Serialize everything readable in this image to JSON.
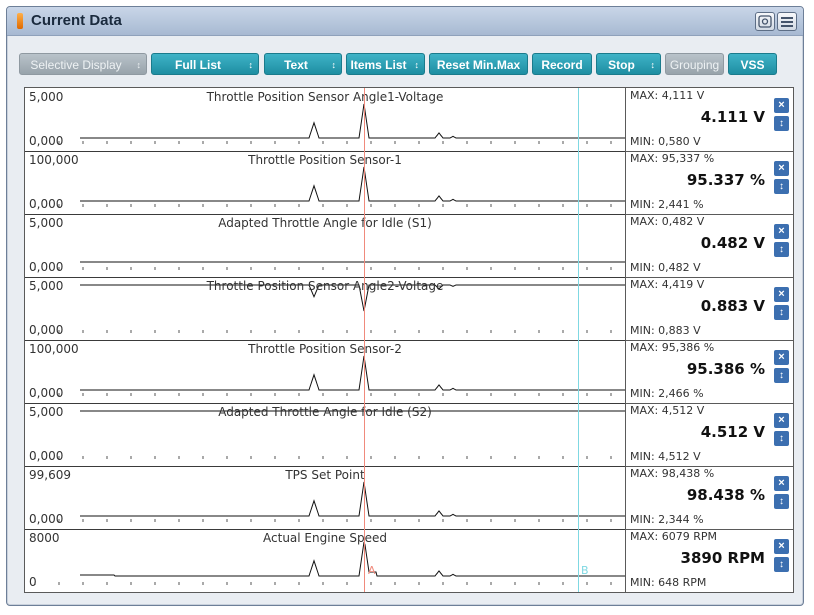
{
  "window": {
    "title": "Current Data"
  },
  "toolbar": {
    "buttons": [
      {
        "label": "Selective Display",
        "spin": "↕",
        "disabled": true
      },
      {
        "label": "Full List",
        "spin": "↕",
        "disabled": false
      },
      {
        "label": "Text",
        "spin": "↕",
        "disabled": false
      },
      {
        "label": "Items List",
        "spin": "↕",
        "disabled": false
      },
      {
        "label": "Reset Min.Max",
        "spin": "",
        "disabled": false
      },
      {
        "label": "Record",
        "spin": "",
        "disabled": false
      },
      {
        "label": "Stop",
        "spin": "↕",
        "disabled": false
      },
      {
        "label": "Grouping",
        "spin": "",
        "disabled": true
      },
      {
        "label": "VSS",
        "spin": "",
        "disabled": false
      }
    ]
  },
  "cursors": {
    "a": "A",
    "b": "B"
  },
  "icons": {
    "close": "×",
    "updown": "↕"
  },
  "rows": [
    {
      "name": "Throttle Position Sensor Angle1-Voltage",
      "ymax": "5,000",
      "ymin": "0,000",
      "max": "MAX: 4,111 V",
      "value": "4.111 V",
      "min": "MIN: 0,580 V",
      "shape": "spikes-low"
    },
    {
      "name": "Throttle Position Sensor-1",
      "ymax": "100,000",
      "ymin": "0,000",
      "max": "MAX: 95,337 %",
      "value": "95.337 %",
      "min": "MIN: 2,441 %",
      "shape": "spikes-low"
    },
    {
      "name": "Adapted Throttle Angle for Idle (S1)",
      "ymax": "5,000",
      "ymin": "0,000",
      "max": "MAX: 0,482 V",
      "value": "0.482 V",
      "min": "MIN: 0,482 V",
      "shape": "flat-low"
    },
    {
      "name": "Throttle Position Sensor Angle2-Voltage",
      "ymax": "5,000",
      "ymin": "0,000",
      "max": "MAX: 4,419 V",
      "value": "0.883 V",
      "min": "MIN: 0,883 V",
      "shape": "spikes-high"
    },
    {
      "name": "Throttle Position Sensor-2",
      "ymax": "100,000",
      "ymin": "0,000",
      "max": "MAX: 95,386 %",
      "value": "95.386 %",
      "min": "MIN: 2,466 %",
      "shape": "spikes-low"
    },
    {
      "name": "Adapted Throttle Angle for Idle (S2)",
      "ymax": "5,000",
      "ymin": "0,000",
      "max": "MAX: 4,512 V",
      "value": "4.512 V",
      "min": "MIN: 4,512 V",
      "shape": "flat-high"
    },
    {
      "name": "TPS Set Point",
      "ymax": "99,609",
      "ymin": "0,000",
      "max": "MAX: 98,438 %",
      "value": "98.438 %",
      "min": "MIN: 2,344 %",
      "shape": "spikes-low"
    },
    {
      "name": "Actual Engine Speed",
      "ymax": "8000",
      "ymin": "0",
      "max": "MAX:  6079 RPM",
      "value": "3890 RPM",
      "min": "MIN:   648 RPM",
      "shape": "rpm"
    }
  ]
}
